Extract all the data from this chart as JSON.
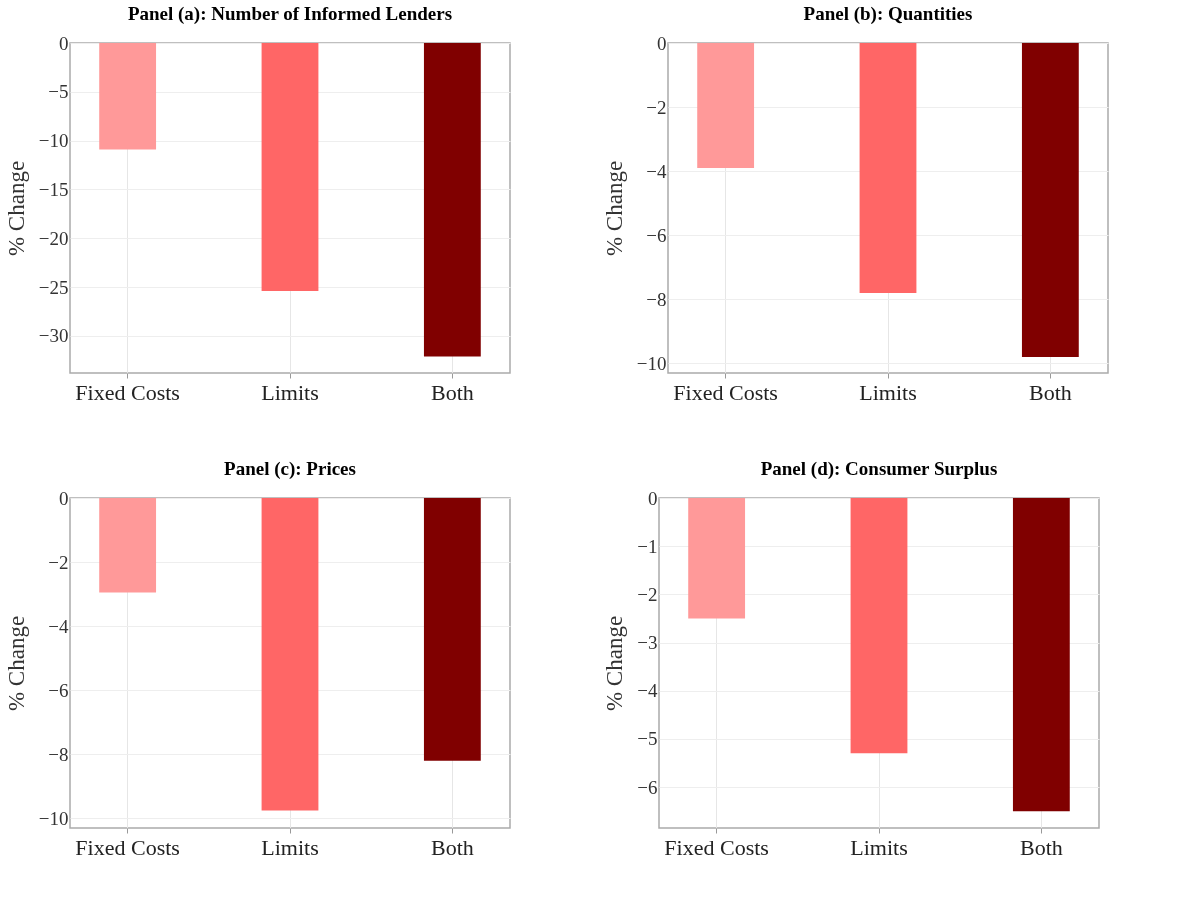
{
  "chart_data": [
    {
      "type": "bar",
      "title": "Panel (a): Number of Informed Lenders",
      "ylabel": "% Change",
      "categories": [
        "Fixed Costs",
        "Limits",
        "Both"
      ],
      "values": [
        -10.9,
        -25.4,
        -32.1
      ],
      "colors": [
        "#ff9999",
        "#ff6666",
        "#800000"
      ],
      "ylim": [
        -33.8,
        0
      ],
      "yticks": [
        -30,
        -25,
        -20,
        -15,
        -10,
        -5,
        0
      ],
      "grid": true
    },
    {
      "type": "bar",
      "title": "Panel (b): Quantities",
      "ylabel": "% Change",
      "categories": [
        "Fixed Costs",
        "Limits",
        "Both"
      ],
      "values": [
        -3.9,
        -7.8,
        -9.8
      ],
      "colors": [
        "#ff9999",
        "#ff6666",
        "#800000"
      ],
      "ylim": [
        -10.3,
        0
      ],
      "yticks": [
        -10,
        -8,
        -6,
        -4,
        -2,
        0
      ],
      "grid": true
    },
    {
      "type": "bar",
      "title": "Panel (c): Prices",
      "ylabel": "% Change",
      "categories": [
        "Fixed Costs",
        "Limits",
        "Both"
      ],
      "values": [
        -2.95,
        -9.75,
        -8.2
      ],
      "colors": [
        "#ff9999",
        "#ff6666",
        "#800000"
      ],
      "ylim": [
        -10.3,
        0
      ],
      "yticks": [
        -10,
        -8,
        -6,
        -4,
        -2,
        0
      ],
      "grid": true
    },
    {
      "type": "bar",
      "title": "Panel (d): Consumer Surplus",
      "ylabel": "% Change",
      "categories": [
        "Fixed Costs",
        "Limits",
        "Both"
      ],
      "values": [
        -2.5,
        -5.3,
        -6.5
      ],
      "colors": [
        "#ff9999",
        "#ff6666",
        "#800000"
      ],
      "ylim": [
        -6.85,
        0
      ],
      "yticks": [
        -6,
        -5,
        -4,
        -3,
        -2,
        -1,
        0
      ],
      "grid": true
    }
  ]
}
